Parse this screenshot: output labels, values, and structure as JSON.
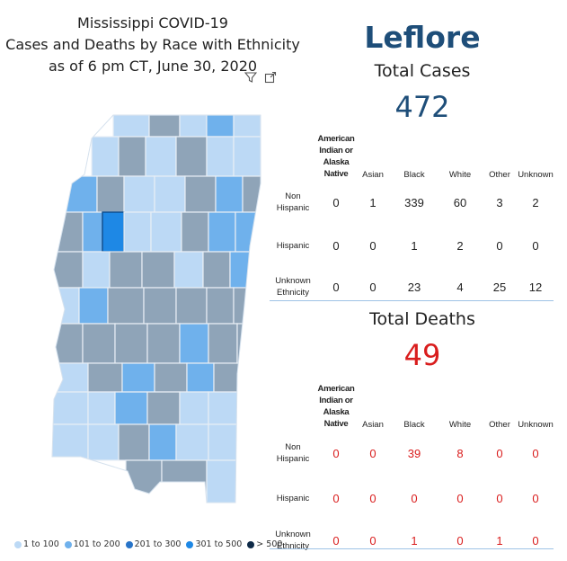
{
  "title": {
    "line1": "Mississippi COVID-19",
    "line2": "Cases and Deaths by Race with Ethnicity",
    "line3": "as of 6 pm CT, June 30, 2020"
  },
  "visual_icons": [
    "filter-icon",
    "focus-mode-icon"
  ],
  "legend": [
    {
      "label": "1 to 100",
      "color": "#bcd9f5"
    },
    {
      "label": "101 to 200",
      "color": "#6fb1ec"
    },
    {
      "label": "201 to 300",
      "color": "#2874c8"
    },
    {
      "label": "301 to 500",
      "color": "#1e88e5"
    },
    {
      "label": "> 500",
      "color": "#0e2a47"
    }
  ],
  "colors": {
    "county_title": "#1e4e79",
    "cases_number": "#1e4e79",
    "deaths_number": "#d91d1d",
    "deaths_values": "#d91d1d",
    "highlighted_county": "#1e88e5",
    "greyed_county": "#8fa4b8"
  },
  "county_name": "Leflore",
  "cases": {
    "label": "Total Cases",
    "total": "472",
    "columns": [
      "American Indian or Alaska Native",
      "Asian",
      "Black",
      "White",
      "Other",
      "Unknown"
    ],
    "rows": [
      {
        "label_l1": "Non",
        "label_l2": "Hispanic",
        "values": [
          "0",
          "1",
          "339",
          "60",
          "3",
          "2"
        ]
      },
      {
        "label_l1": "Hispanic",
        "label_l2": "",
        "values": [
          "0",
          "0",
          "1",
          "2",
          "0",
          "0"
        ]
      },
      {
        "label_l1": "Unknown",
        "label_l2": "Ethnicity",
        "values": [
          "0",
          "0",
          "23",
          "4",
          "25",
          "12"
        ]
      }
    ]
  },
  "deaths": {
    "label": "Total Deaths",
    "total": "49",
    "columns": [
      "American Indian or Alaska Native",
      "Asian",
      "Black",
      "White",
      "Other",
      "Unknown"
    ],
    "rows": [
      {
        "label_l1": "Non",
        "label_l2": "Hispanic",
        "values": [
          "0",
          "0",
          "39",
          "8",
          "0",
          "0"
        ]
      },
      {
        "label_l1": "Hispanic",
        "label_l2": "",
        "values": [
          "0",
          "0",
          "0",
          "0",
          "0",
          "0"
        ]
      },
      {
        "label_l1": "Unknown",
        "label_l2": "Ethnicity",
        "values": [
          "0",
          "0",
          "1",
          "0",
          "1",
          "0"
        ]
      }
    ]
  }
}
